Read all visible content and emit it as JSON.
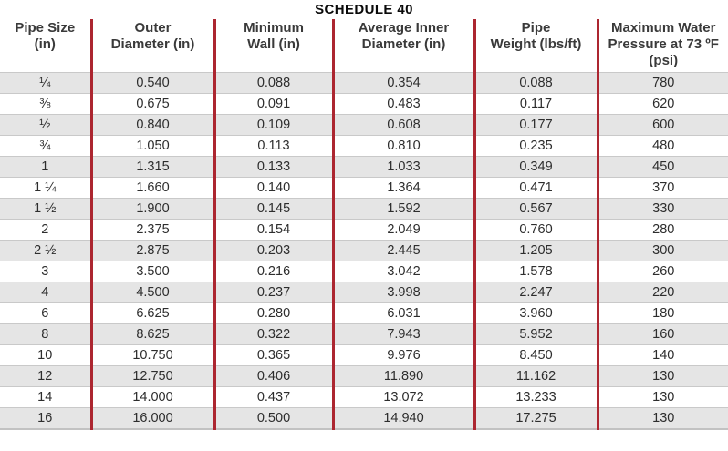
{
  "title": "SCHEDULE 40",
  "chart_data": {
    "type": "table",
    "title": "SCHEDULE 40",
    "columns": [
      {
        "label": "Pipe Size (in)",
        "lines": [
          "Pipe Size",
          "(in)"
        ]
      },
      {
        "label": "Outer Diameter (in)",
        "lines": [
          "Outer",
          "Diameter (in)"
        ]
      },
      {
        "label": "Minimum Wall (in)",
        "lines": [
          "Minimum",
          "Wall (in)"
        ]
      },
      {
        "label": "Average Inner Diameter (in)",
        "lines": [
          "Average Inner",
          "Diameter (in)"
        ]
      },
      {
        "label": "Pipe Weight (lbs/ft)",
        "lines": [
          "Pipe",
          "Weight (lbs/ft)"
        ]
      },
      {
        "label": "Maximum Water Pressure at 73 ºF (psi)",
        "lines": [
          "Maximum Water",
          "Pressure at 73 ºF",
          "(psi)"
        ]
      }
    ],
    "rows": [
      [
        "¼",
        "0.540",
        "0.088",
        "0.354",
        "0.088",
        "780"
      ],
      [
        "⅜",
        "0.675",
        "0.091",
        "0.483",
        "0.117",
        "620"
      ],
      [
        "½",
        "0.840",
        "0.109",
        "0.608",
        "0.177",
        "600"
      ],
      [
        "¾",
        "1.050",
        "0.113",
        "0.810",
        "0.235",
        "480"
      ],
      [
        "1",
        "1.315",
        "0.133",
        "1.033",
        "0.349",
        "450"
      ],
      [
        "1 ¼",
        "1.660",
        "0.140",
        "1.364",
        "0.471",
        "370"
      ],
      [
        "1 ½",
        "1.900",
        "0.145",
        "1.592",
        "0.567",
        "330"
      ],
      [
        "2",
        "2.375",
        "0.154",
        "2.049",
        "0.760",
        "280"
      ],
      [
        "2 ½",
        "2.875",
        "0.203",
        "2.445",
        "1.205",
        "300"
      ],
      [
        "3",
        "3.500",
        "0.216",
        "3.042",
        "1.578",
        "260"
      ],
      [
        "4",
        "4.500",
        "0.237",
        "3.998",
        "2.247",
        "220"
      ],
      [
        "6",
        "6.625",
        "0.280",
        "6.031",
        "3.960",
        "180"
      ],
      [
        "8",
        "8.625",
        "0.322",
        "7.943",
        "5.952",
        "160"
      ],
      [
        "10",
        "10.750",
        "0.365",
        "9.976",
        "8.450",
        "140"
      ],
      [
        "12",
        "12.750",
        "0.406",
        "11.890",
        "11.162",
        "130"
      ],
      [
        "14",
        "14.000",
        "0.437",
        "13.072",
        "13.233",
        "130"
      ],
      [
        "16",
        "16.000",
        "0.500",
        "14.940",
        "17.275",
        "130"
      ]
    ]
  },
  "colors": {
    "divider_red": "#AC2630",
    "row_alt_gray": "#E5E5E5",
    "row_border_gray": "#C9C9C9",
    "header_text": "#3A3A3A",
    "body_text": "#2D2D2D"
  }
}
